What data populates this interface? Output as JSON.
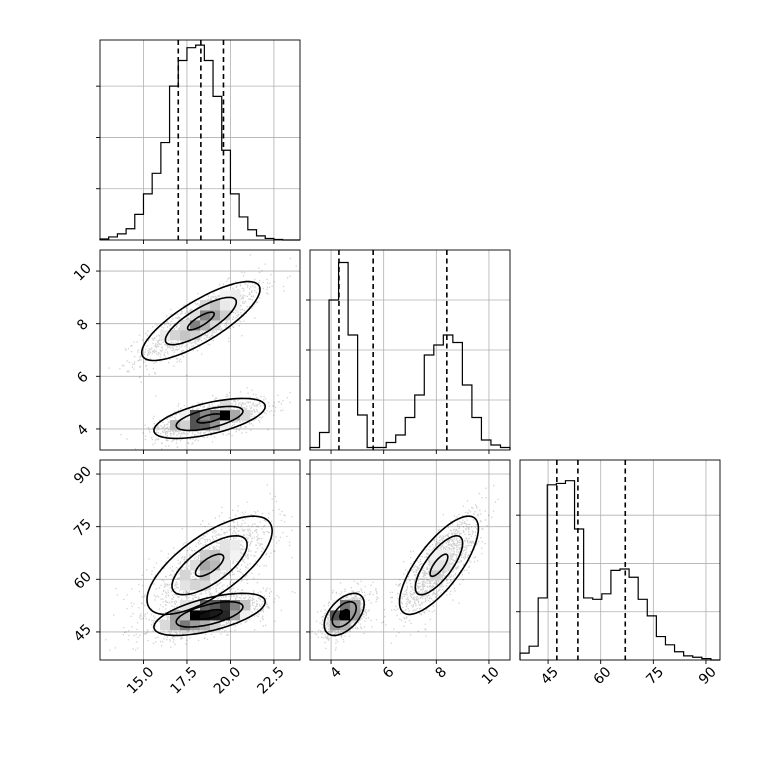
{
  "chart_data": {
    "type": "corner",
    "grid": true,
    "parameters": [
      {
        "range": [
          12.5,
          24.0
        ],
        "ticks": [
          15.0,
          17.5,
          20.0,
          22.5
        ],
        "tick_labels": [
          "15.0",
          "17.5",
          "20.0",
          "22.5"
        ],
        "quantiles": [
          17.0,
          18.3,
          19.6
        ],
        "hist_max": 3.9,
        "hist_ticks": [
          1,
          2,
          3
        ],
        "histogram": [
          0.02,
          0.06,
          0.12,
          0.22,
          0.5,
          0.9,
          1.3,
          1.9,
          3.0,
          3.5,
          3.75,
          3.8,
          3.5,
          2.8,
          1.75,
          0.9,
          0.45,
          0.2,
          0.08,
          0.03,
          0.01,
          0.0,
          0.0
        ]
      },
      {
        "range": [
          3.2,
          10.8
        ],
        "ticks": [
          4,
          6,
          8,
          10
        ],
        "tick_labels": [
          "4",
          "6",
          "8",
          "10"
        ],
        "quantiles": [
          4.3,
          5.6,
          8.4
        ],
        "hist_max": 0.4,
        "hist_ticks": [
          0.1,
          0.2,
          0.3
        ],
        "histogram": [
          0.005,
          0.035,
          0.3,
          0.375,
          0.23,
          0.07,
          0.005,
          0.005,
          0.015,
          0.03,
          0.065,
          0.11,
          0.19,
          0.21,
          0.23,
          0.215,
          0.13,
          0.065,
          0.02,
          0.01,
          0.005
        ]
      },
      {
        "range": [
          37,
          94
        ],
        "ticks": [
          45,
          60,
          75,
          90
        ],
        "tick_labels": [
          "45",
          "60",
          "75",
          "90"
        ],
        "quantiles": [
          47.5,
          53.5,
          67.0
        ],
        "hist_max": 0.145,
        "hist_ticks": [
          0.035,
          0.07,
          0.105
        ],
        "histogram": [
          0.005,
          0.01,
          0.045,
          0.127,
          0.128,
          0.13,
          0.095,
          0.045,
          0.044,
          0.048,
          0.065,
          0.066,
          0.06,
          0.044,
          0.032,
          0.017,
          0.011,
          0.006,
          0.003,
          0.002,
          0.001,
          0.0
        ]
      }
    ],
    "pairs": [
      {
        "x": 0,
        "y": 1,
        "modes": [
          {
            "center": [
              18.3,
              8.1
            ],
            "sx": 1.7,
            "sy": 0.75,
            "rho": 0.8,
            "weight": 0.52
          },
          {
            "center": [
              18.8,
              4.4
            ],
            "sx": 1.6,
            "sy": 0.38,
            "rho": 0.6,
            "weight": 0.48
          }
        ]
      },
      {
        "x": 0,
        "y": 2,
        "modes": [
          {
            "center": [
              18.8,
              64.0
            ],
            "sx": 1.8,
            "sy": 7.0,
            "rho": 0.7,
            "weight": 0.5
          },
          {
            "center": [
              18.8,
              50.0
            ],
            "sx": 1.6,
            "sy": 3.0,
            "rho": 0.6,
            "weight": 0.5
          }
        ]
      },
      {
        "x": 1,
        "y": 2,
        "modes": [
          {
            "center": [
              8.1,
              64.0
            ],
            "sx": 0.75,
            "sy": 7.0,
            "rho": 0.75,
            "weight": 0.52
          },
          {
            "center": [
              4.5,
              50.0
            ],
            "sx": 0.38,
            "sy": 3.0,
            "rho": 0.5,
            "weight": 0.48
          }
        ]
      }
    ]
  }
}
